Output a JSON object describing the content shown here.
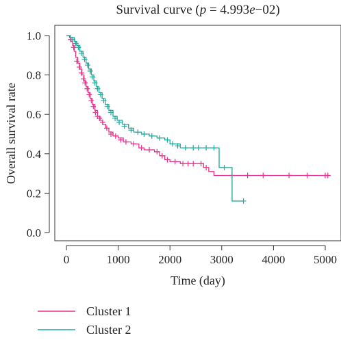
{
  "chart_data": {
    "type": "line",
    "title_prefix": "Survival curve (",
    "title_p": "p",
    "title_suffix": " = 4.993",
    "title_e": "e",
    "title_end": "−02)",
    "xlabel": "Time (day)",
    "ylabel": "Overall survival rate",
    "xlim": [
      0,
      5100
    ],
    "ylim": [
      0,
      1.0
    ],
    "x_ticks": [
      "0",
      "1000",
      "2000",
      "3000",
      "4000",
      "5000"
    ],
    "y_ticks": [
      "0.0",
      "0.2",
      "0.4",
      "0.6",
      "0.8",
      "1.0"
    ],
    "grid": false,
    "legend_position": "bottom-left",
    "series": [
      {
        "name": "Cluster 1",
        "color": "#e8308a",
        "steps": [
          [
            0,
            1.0
          ],
          [
            60,
            0.99
          ],
          [
            90,
            0.97
          ],
          [
            120,
            0.95
          ],
          [
            150,
            0.92
          ],
          [
            180,
            0.89
          ],
          [
            220,
            0.86
          ],
          [
            260,
            0.83
          ],
          [
            300,
            0.8
          ],
          [
            340,
            0.77
          ],
          [
            380,
            0.74
          ],
          [
            420,
            0.71
          ],
          [
            460,
            0.68
          ],
          [
            500,
            0.65
          ],
          [
            550,
            0.62
          ],
          [
            600,
            0.59
          ],
          [
            650,
            0.57
          ],
          [
            700,
            0.55
          ],
          [
            760,
            0.53
          ],
          [
            820,
            0.51
          ],
          [
            900,
            0.49
          ],
          [
            1000,
            0.48
          ],
          [
            1100,
            0.46
          ],
          [
            1250,
            0.45
          ],
          [
            1400,
            0.43
          ],
          [
            1500,
            0.42
          ],
          [
            1700,
            0.41
          ],
          [
            1800,
            0.39
          ],
          [
            1900,
            0.37
          ],
          [
            2000,
            0.36
          ],
          [
            2200,
            0.35
          ],
          [
            2500,
            0.35
          ],
          [
            2650,
            0.33
          ],
          [
            2750,
            0.31
          ],
          [
            2850,
            0.29
          ],
          [
            5100,
            0.29
          ]
        ],
        "censors": [
          [
            80,
            0.98
          ],
          [
            140,
            0.94
          ],
          [
            200,
            0.87
          ],
          [
            250,
            0.84
          ],
          [
            290,
            0.81
          ],
          [
            330,
            0.78
          ],
          [
            360,
            0.76
          ],
          [
            400,
            0.73
          ],
          [
            440,
            0.7
          ],
          [
            480,
            0.67
          ],
          [
            520,
            0.64
          ],
          [
            560,
            0.61
          ],
          [
            600,
            0.59
          ],
          [
            640,
            0.58
          ],
          [
            700,
            0.56
          ],
          [
            780,
            0.53
          ],
          [
            860,
            0.5
          ],
          [
            950,
            0.49
          ],
          [
            1050,
            0.47
          ],
          [
            1150,
            0.46
          ],
          [
            1300,
            0.45
          ],
          [
            1450,
            0.43
          ],
          [
            1600,
            0.42
          ],
          [
            1750,
            0.41
          ],
          [
            1850,
            0.39
          ],
          [
            1950,
            0.37
          ],
          [
            2100,
            0.36
          ],
          [
            2250,
            0.35
          ],
          [
            2350,
            0.35
          ],
          [
            2450,
            0.35
          ],
          [
            2600,
            0.35
          ],
          [
            2700,
            0.33
          ],
          [
            3200,
            0.29
          ],
          [
            3500,
            0.29
          ],
          [
            3800,
            0.29
          ],
          [
            4300,
            0.29
          ],
          [
            4650,
            0.29
          ],
          [
            5000,
            0.29
          ],
          [
            5050,
            0.29
          ]
        ]
      },
      {
        "name": "Cluster 2",
        "color": "#20a89a",
        "steps": [
          [
            0,
            1.0
          ],
          [
            80,
            0.99
          ],
          [
            150,
            0.97
          ],
          [
            200,
            0.95
          ],
          [
            260,
            0.92
          ],
          [
            320,
            0.89
          ],
          [
            380,
            0.86
          ],
          [
            430,
            0.83
          ],
          [
            480,
            0.8
          ],
          [
            530,
            0.77
          ],
          [
            580,
            0.74
          ],
          [
            630,
            0.71
          ],
          [
            690,
            0.68
          ],
          [
            750,
            0.65
          ],
          [
            820,
            0.62
          ],
          [
            900,
            0.59
          ],
          [
            980,
            0.57
          ],
          [
            1080,
            0.55
          ],
          [
            1200,
            0.53
          ],
          [
            1300,
            0.51
          ],
          [
            1450,
            0.5
          ],
          [
            1600,
            0.49
          ],
          [
            1750,
            0.48
          ],
          [
            1900,
            0.47
          ],
          [
            2000,
            0.45
          ],
          [
            2200,
            0.43
          ],
          [
            2900,
            0.43
          ],
          [
            2950,
            0.33
          ],
          [
            3100,
            0.33
          ],
          [
            3200,
            0.16
          ],
          [
            3420,
            0.16
          ]
        ],
        "censors": [
          [
            120,
            0.98
          ],
          [
            180,
            0.96
          ],
          [
            230,
            0.94
          ],
          [
            290,
            0.91
          ],
          [
            350,
            0.88
          ],
          [
            410,
            0.85
          ],
          [
            460,
            0.82
          ],
          [
            500,
            0.79
          ],
          [
            550,
            0.76
          ],
          [
            600,
            0.73
          ],
          [
            660,
            0.7
          ],
          [
            720,
            0.67
          ],
          [
            790,
            0.64
          ],
          [
            860,
            0.61
          ],
          [
            940,
            0.58
          ],
          [
            1020,
            0.56
          ],
          [
            1120,
            0.54
          ],
          [
            1250,
            0.52
          ],
          [
            1380,
            0.51
          ],
          [
            1500,
            0.5
          ],
          [
            1650,
            0.49
          ],
          [
            1800,
            0.48
          ],
          [
            1950,
            0.47
          ],
          [
            2050,
            0.45
          ],
          [
            2150,
            0.44
          ],
          [
            2300,
            0.43
          ],
          [
            2450,
            0.43
          ],
          [
            2550,
            0.43
          ],
          [
            2700,
            0.43
          ],
          [
            2850,
            0.43
          ],
          [
            3050,
            0.33
          ],
          [
            3420,
            0.16
          ]
        ]
      }
    ]
  }
}
